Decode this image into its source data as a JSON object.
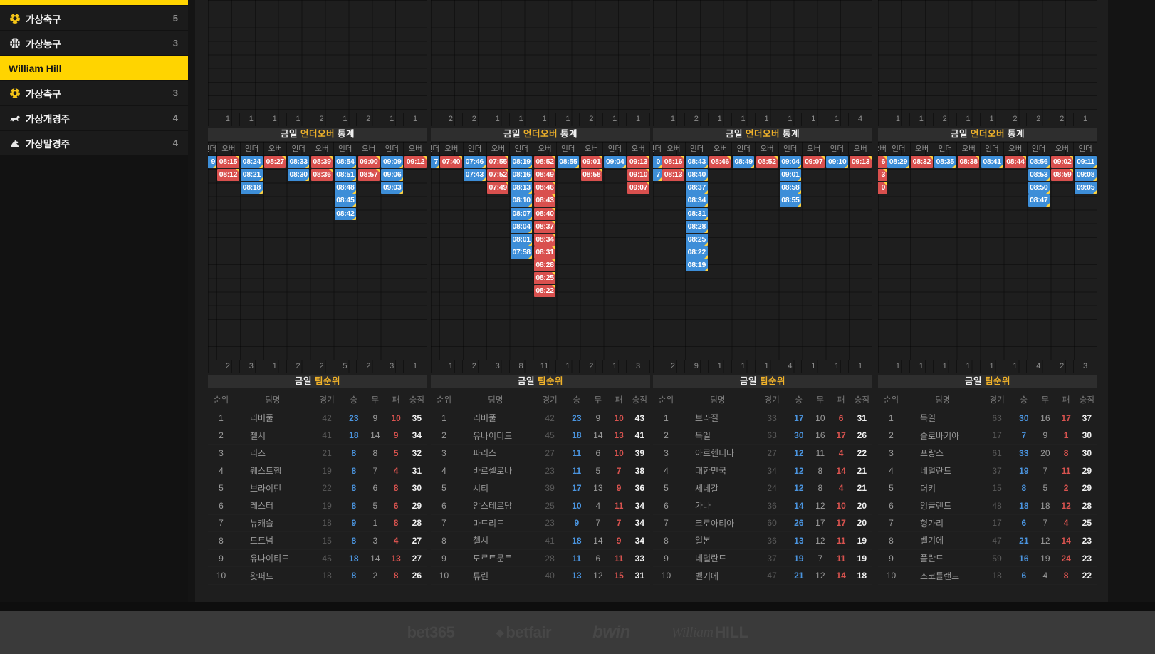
{
  "sidebar": {
    "items": [
      {
        "id": "virtual-soccer-1",
        "icon": "soccer",
        "label": "가상축구",
        "count": "5",
        "active": false
      },
      {
        "id": "virtual-basketball",
        "icon": "basketball",
        "label": "가상농구",
        "count": "3",
        "active": false
      },
      {
        "id": "william-hill",
        "icon": "",
        "label": "William Hill",
        "count": "",
        "active": true
      },
      {
        "id": "virtual-soccer-2",
        "icon": "soccer",
        "label": "가상축구",
        "count": "3",
        "active": false
      },
      {
        "id": "virtual-dog-racing",
        "icon": "dog",
        "label": "가상개경주",
        "count": "4",
        "active": false
      },
      {
        "id": "virtual-horse-racing",
        "icon": "horse",
        "label": "가상말경주",
        "count": "4",
        "active": false
      }
    ]
  },
  "titles": {
    "underover": {
      "day": "금일",
      "highlight": "언더오버",
      "tail": "통계"
    },
    "teamrank": {
      "day": "금일",
      "highlight": "팀순위",
      "tail": ""
    }
  },
  "labels": {
    "over": "오버",
    "under": "언더"
  },
  "colors": {
    "over": "#d9504e",
    "under": "#3d8ed8",
    "fold": "#ffd23c",
    "accent": "#f0b22a",
    "active_bg": "#ffd400"
  },
  "table_headers": [
    "순위",
    "팀명",
    "경기",
    "승",
    "무",
    "패",
    "승점"
  ],
  "blocks": [
    {
      "top_counts": [
        "1",
        "1",
        "1",
        "1",
        "2",
        "1",
        "2",
        "1",
        "1"
      ],
      "sliver": [
        {
          "text": "9",
          "type": "under"
        }
      ],
      "columns": [
        {
          "header": "오버",
          "type": "over",
          "times": [
            "08:15",
            "08:12"
          ]
        },
        {
          "header": "언더",
          "type": "under",
          "times": [
            "08:24",
            "08:21",
            "08:18"
          ]
        },
        {
          "header": "오버",
          "type": "over",
          "times": [
            "08:27"
          ]
        },
        {
          "header": "언더",
          "type": "under",
          "times": [
            "08:33",
            "08:30"
          ]
        },
        {
          "header": "오버",
          "type": "over",
          "times": [
            "08:39",
            "08:36"
          ]
        },
        {
          "header": "언더",
          "type": "under",
          "times": [
            "08:54",
            "08:51",
            "08:48",
            "08:45",
            "08:42"
          ]
        },
        {
          "header": "오버",
          "type": "over",
          "times": [
            "09:00",
            "08:57"
          ]
        },
        {
          "header": "언더",
          "type": "under",
          "times": [
            "09:09",
            "09:06",
            "09:03"
          ]
        },
        {
          "header": "오버",
          "type": "over",
          "times": [
            "09:12"
          ]
        }
      ],
      "bottom_counts": [
        "2",
        "3",
        "1",
        "2",
        "2",
        "5",
        "2",
        "3",
        "1"
      ],
      "table_rows": [
        [
          "1",
          "리버풀",
          "42",
          "23",
          "9",
          "10",
          "35"
        ],
        [
          "2",
          "첼시",
          "41",
          "18",
          "14",
          "9",
          "34"
        ],
        [
          "3",
          "리즈",
          "21",
          "8",
          "8",
          "5",
          "32"
        ],
        [
          "4",
          "웨스트햄",
          "19",
          "8",
          "7",
          "4",
          "31"
        ],
        [
          "5",
          "브라이턴",
          "22",
          "8",
          "6",
          "8",
          "30"
        ],
        [
          "6",
          "레스터",
          "19",
          "8",
          "5",
          "6",
          "29"
        ],
        [
          "7",
          "뉴캐슬",
          "18",
          "9",
          "1",
          "8",
          "28"
        ],
        [
          "8",
          "토트넘",
          "15",
          "8",
          "3",
          "4",
          "27"
        ],
        [
          "9",
          "유나이티드",
          "45",
          "18",
          "14",
          "13",
          "27"
        ],
        [
          "10",
          "왓퍼드",
          "18",
          "8",
          "2",
          "8",
          "26"
        ]
      ]
    },
    {
      "top_counts": [
        "2",
        "2",
        "1",
        "1",
        "1",
        "1",
        "2",
        "1",
        "1"
      ],
      "sliver": [
        {
          "text": "7",
          "type": "under"
        }
      ],
      "columns": [
        {
          "header": "오버",
          "type": "over",
          "times": [
            "07:40"
          ]
        },
        {
          "header": "언더",
          "type": "under",
          "times": [
            "07:46",
            "07:43"
          ]
        },
        {
          "header": "오버",
          "type": "over",
          "times": [
            "07:55",
            "07:52",
            "07:49"
          ]
        },
        {
          "header": "언더",
          "type": "under",
          "times": [
            "08:19",
            "08:16",
            "08:13",
            "08:10",
            "08:07",
            "08:04",
            "08:01",
            "07:58"
          ]
        },
        {
          "header": "오버",
          "type": "over",
          "times": [
            "08:52",
            "08:49",
            "08:46",
            "08:43",
            "08:40",
            "08:37",
            "08:34",
            "08:31",
            "08:28",
            "08:25",
            "08:22"
          ]
        },
        {
          "header": "언더",
          "type": "under",
          "times": [
            "08:55"
          ]
        },
        {
          "header": "오버",
          "type": "over",
          "times": [
            "09:01",
            "08:58"
          ]
        },
        {
          "header": "언더",
          "type": "under",
          "times": [
            "09:04"
          ]
        },
        {
          "header": "오버",
          "type": "over",
          "times": [
            "09:13",
            "09:10",
            "09:07"
          ]
        }
      ],
      "bottom_counts": [
        "1",
        "2",
        "3",
        "8",
        "11",
        "1",
        "2",
        "1",
        "3"
      ],
      "table_rows": [
        [
          "1",
          "리버풀",
          "42",
          "23",
          "9",
          "10",
          "43"
        ],
        [
          "2",
          "유나이티드",
          "45",
          "18",
          "14",
          "13",
          "41"
        ],
        [
          "3",
          "파리스",
          "27",
          "11",
          "6",
          "10",
          "39"
        ],
        [
          "4",
          "바르셀로나",
          "23",
          "11",
          "5",
          "7",
          "38"
        ],
        [
          "5",
          "시티",
          "39",
          "17",
          "13",
          "9",
          "36"
        ],
        [
          "6",
          "암스테르담",
          "25",
          "10",
          "4",
          "11",
          "34"
        ],
        [
          "7",
          "마드리드",
          "23",
          "9",
          "7",
          "7",
          "34"
        ],
        [
          "8",
          "첼시",
          "41",
          "18",
          "14",
          "9",
          "34"
        ],
        [
          "9",
          "도르트문트",
          "28",
          "11",
          "6",
          "11",
          "33"
        ],
        [
          "10",
          "튜린",
          "40",
          "13",
          "12",
          "15",
          "31"
        ]
      ]
    },
    {
      "top_counts": [
        "1",
        "2",
        "1",
        "1",
        "1",
        "1",
        "1",
        "1",
        "4"
      ],
      "sliver": [
        {
          "text": "0",
          "type": "under"
        },
        {
          "text": "7",
          "type": "under"
        }
      ],
      "columns": [
        {
          "header": "오버",
          "type": "over",
          "times": [
            "08:16",
            "08:13"
          ]
        },
        {
          "header": "언더",
          "type": "under",
          "times": [
            "08:43",
            "08:40",
            "08:37",
            "08:34",
            "08:31",
            "08:28",
            "08:25",
            "08:22",
            "08:19"
          ]
        },
        {
          "header": "오버",
          "type": "over",
          "times": [
            "08:46"
          ]
        },
        {
          "header": "언더",
          "type": "under",
          "times": [
            "08:49"
          ]
        },
        {
          "header": "오버",
          "type": "over",
          "times": [
            "08:52"
          ]
        },
        {
          "header": "언더",
          "type": "under",
          "times": [
            "09:04",
            "09:01",
            "08:58",
            "08:55"
          ]
        },
        {
          "header": "오버",
          "type": "over",
          "times": [
            "09:07"
          ]
        },
        {
          "header": "언더",
          "type": "under",
          "times": [
            "09:10"
          ]
        },
        {
          "header": "오버",
          "type": "over",
          "times": [
            "09:13"
          ]
        }
      ],
      "bottom_counts": [
        "2",
        "9",
        "1",
        "1",
        "1",
        "4",
        "1",
        "1",
        "1"
      ],
      "table_rows": [
        [
          "1",
          "브라질",
          "33",
          "17",
          "10",
          "6",
          "31"
        ],
        [
          "2",
          "독일",
          "63",
          "30",
          "16",
          "17",
          "26"
        ],
        [
          "3",
          "아르헨티나",
          "27",
          "12",
          "11",
          "4",
          "22"
        ],
        [
          "4",
          "대한민국",
          "34",
          "12",
          "8",
          "14",
          "21"
        ],
        [
          "5",
          "세네갈",
          "24",
          "12",
          "8",
          "4",
          "21"
        ],
        [
          "6",
          "가나",
          "36",
          "14",
          "12",
          "10",
          "20"
        ],
        [
          "7",
          "크로아티아",
          "60",
          "26",
          "17",
          "17",
          "20"
        ],
        [
          "8",
          "일본",
          "36",
          "13",
          "12",
          "11",
          "19"
        ],
        [
          "9",
          "네덜란드",
          "37",
          "19",
          "7",
          "11",
          "19"
        ],
        [
          "10",
          "벨기에",
          "47",
          "21",
          "12",
          "14",
          "18"
        ]
      ]
    },
    {
      "top_counts": [
        "1",
        "1",
        "2",
        "1",
        "1",
        "2",
        "2",
        "2",
        "1"
      ],
      "sliver": [
        {
          "text": "6",
          "type": "over"
        },
        {
          "text": "3",
          "type": "over"
        },
        {
          "text": "0",
          "type": "over"
        }
      ],
      "columns": [
        {
          "header": "언더",
          "type": "under",
          "times": [
            "08:29"
          ]
        },
        {
          "header": "오버",
          "type": "over",
          "times": [
            "08:32"
          ]
        },
        {
          "header": "언더",
          "type": "under",
          "times": [
            "08:35"
          ]
        },
        {
          "header": "오버",
          "type": "over",
          "times": [
            "08:38"
          ]
        },
        {
          "header": "언더",
          "type": "under",
          "times": [
            "08:41"
          ]
        },
        {
          "header": "오버",
          "type": "over",
          "times": [
            "08:44"
          ]
        },
        {
          "header": "언더",
          "type": "under",
          "times": [
            "08:56",
            "08:53",
            "08:50",
            "08:47"
          ]
        },
        {
          "header": "오버",
          "type": "over",
          "times": [
            "09:02",
            "08:59"
          ]
        },
        {
          "header": "언더",
          "type": "under",
          "times": [
            "09:11",
            "09:08",
            "09:05"
          ]
        }
      ],
      "bottom_counts": [
        "1",
        "1",
        "1",
        "1",
        "1",
        "1",
        "4",
        "2",
        "3"
      ],
      "table_rows": [
        [
          "1",
          "독일",
          "63",
          "30",
          "16",
          "17",
          "37"
        ],
        [
          "2",
          "슬로바키아",
          "17",
          "7",
          "9",
          "1",
          "30"
        ],
        [
          "3",
          "프랑스",
          "61",
          "33",
          "20",
          "8",
          "30"
        ],
        [
          "4",
          "네덜란드",
          "37",
          "19",
          "7",
          "11",
          "29"
        ],
        [
          "5",
          "더키",
          "15",
          "8",
          "5",
          "2",
          "29"
        ],
        [
          "6",
          "잉글랜드",
          "48",
          "18",
          "18",
          "12",
          "28"
        ],
        [
          "7",
          "헝가리",
          "17",
          "6",
          "7",
          "4",
          "25"
        ],
        [
          "8",
          "벨기에",
          "47",
          "21",
          "12",
          "14",
          "23"
        ],
        [
          "9",
          "폴란드",
          "59",
          "16",
          "19",
          "24",
          "23"
        ],
        [
          "10",
          "스코틀랜드",
          "18",
          "6",
          "4",
          "8",
          "22"
        ]
      ]
    }
  ],
  "footer": {
    "logos": [
      {
        "id": "bet365",
        "text": "bet365"
      },
      {
        "id": "betfair",
        "text": "betfair"
      },
      {
        "id": "bwin",
        "text": "bwin"
      },
      {
        "id": "william-hill",
        "text": "William",
        "text2": "HILL"
      }
    ]
  }
}
